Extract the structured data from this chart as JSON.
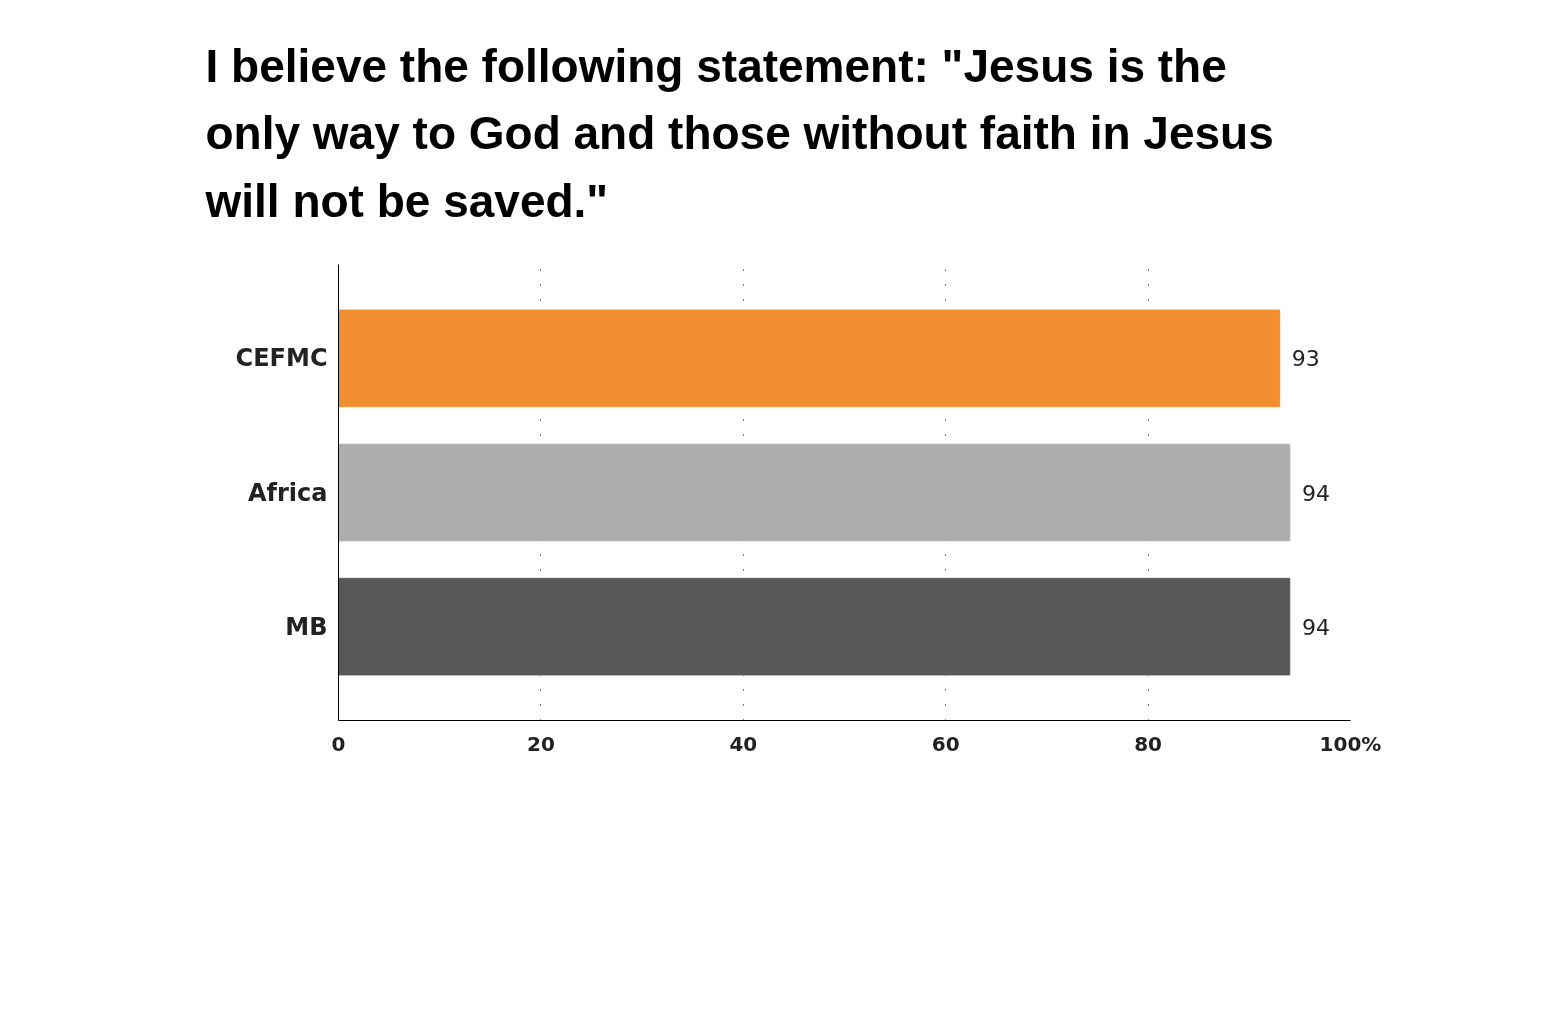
{
  "chart_data": {
    "type": "bar",
    "orientation": "horizontal",
    "title": "I believe the following statement: \"Jesus is the only way to God and those without faith in Jesus will not be saved.\"",
    "categories": [
      "CEFMC",
      "Africa",
      "MB"
    ],
    "values": [
      93,
      94,
      94
    ],
    "colors": [
      "#f28e2f",
      "#adadad",
      "#585858"
    ],
    "xlim": [
      0,
      100
    ],
    "xticks": [
      0,
      20,
      40,
      60,
      80,
      {
        "value": 100,
        "label": "100%"
      }
    ],
    "grid": "x",
    "data_labels": true
  }
}
